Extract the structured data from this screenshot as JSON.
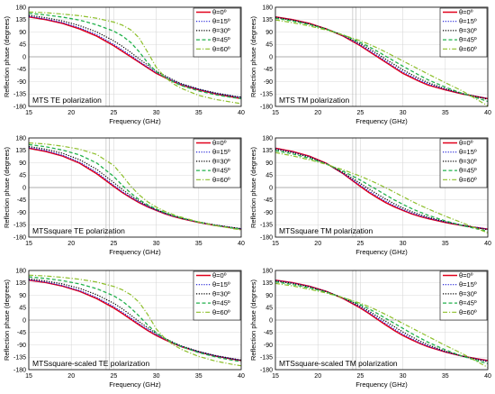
{
  "chart_data": [
    {
      "type": "line",
      "title": "MTS  TE polarization",
      "xlabel": "Frequency (GHz)",
      "ylabel": "Reflection phase (degrees)",
      "xlim": [
        15,
        40
      ],
      "ylim": [
        -180,
        180
      ],
      "xticks": [
        "15",
        "20",
        "25",
        "30",
        "35",
        "40"
      ],
      "yticks": [
        "180",
        "135",
        "90",
        "45",
        "0",
        "-45",
        "-90",
        "-135",
        "-180"
      ],
      "grid": true,
      "legend_position": "top-right",
      "x": [
        15,
        17,
        19,
        21,
        23,
        25,
        26,
        27,
        28,
        29,
        30,
        31,
        32,
        33,
        35,
        37,
        39,
        40
      ],
      "series": [
        {
          "name": "θ=0º",
          "color": "#e0001b",
          "dash": "solid",
          "values": [
            145,
            135,
            121,
            101,
            75,
            40,
            20,
            0,
            -20,
            -40,
            -60,
            -75,
            -90,
            -103,
            -120,
            -135,
            -146,
            -152
          ]
        },
        {
          "name": "θ=15º",
          "color": "#1a1ad6",
          "dash": "dot",
          "values": [
            147,
            137,
            124,
            105,
            80,
            45,
            25,
            5,
            -17,
            -37,
            -57,
            -72,
            -87,
            -100,
            -118,
            -133,
            -143,
            -148
          ]
        },
        {
          "name": "θ=30º",
          "color": "#000000",
          "dash": "dot",
          "values": [
            151,
            142,
            130,
            113,
            90,
            58,
            38,
            16,
            -8,
            -30,
            -52,
            -68,
            -84,
            -98,
            -117,
            -131,
            -142,
            -146
          ]
        },
        {
          "name": "θ=45º",
          "color": "#22b14c",
          "dash": "dash",
          "values": [
            158,
            152,
            144,
            133,
            116,
            93,
            76,
            52,
            18,
            -22,
            -54,
            -74,
            -91,
            -105,
            -124,
            -138,
            -148,
            -152
          ]
        },
        {
          "name": "θ=60º",
          "color": "#8dbf2a",
          "dash": "dashdot",
          "values": [
            163,
            160,
            155,
            149,
            140,
            126,
            115,
            98,
            68,
            16,
            -38,
            -73,
            -98,
            -115,
            -140,
            -155,
            -165,
            -170
          ]
        }
      ]
    },
    {
      "type": "line",
      "title": "MTS  TM polarization",
      "xlabel": "Frequency (GHz)",
      "ylabel": "Reflection phase (degrees)",
      "xlim": [
        15,
        40
      ],
      "ylim": [
        -180,
        180
      ],
      "xticks": [
        "15",
        "20",
        "25",
        "30",
        "35",
        "40"
      ],
      "yticks": [
        "180",
        "135",
        "90",
        "45",
        "0",
        "-45",
        "-90",
        "-135",
        "-180"
      ],
      "grid": true,
      "legend_position": "top-right",
      "x": [
        15,
        17,
        19,
        21,
        23,
        25,
        26,
        27,
        28,
        29,
        30,
        31,
        32,
        33,
        35,
        37,
        39,
        40
      ],
      "series": [
        {
          "name": "θ=0º",
          "color": "#e0001b",
          "dash": "solid",
          "values": [
            145,
            135,
            121,
            101,
            75,
            40,
            20,
            0,
            -20,
            -40,
            -60,
            -75,
            -90,
            -103,
            -120,
            -135,
            -146,
            -152
          ]
        },
        {
          "name": "θ=15º",
          "color": "#1a1ad6",
          "dash": "dot",
          "values": [
            144,
            134,
            120,
            101,
            76,
            43,
            24,
            4,
            -16,
            -36,
            -55,
            -71,
            -86,
            -99,
            -118,
            -134,
            -146,
            -152
          ]
        },
        {
          "name": "θ=30º",
          "color": "#000000",
          "dash": "dot",
          "values": [
            143,
            133,
            119,
            101,
            78,
            47,
            30,
            11,
            -9,
            -28,
            -47,
            -64,
            -80,
            -94,
            -116,
            -133,
            -147,
            -154
          ]
        },
        {
          "name": "θ=45º",
          "color": "#22b14c",
          "dash": "dash",
          "values": [
            140,
            130,
            117,
            100,
            79,
            52,
            37,
            20,
            2,
            -16,
            -34,
            -51,
            -68,
            -84,
            -110,
            -133,
            -152,
            -162
          ]
        },
        {
          "name": "θ=60º",
          "color": "#8dbf2a",
          "dash": "dashdot",
          "values": [
            134,
            124,
            112,
            97,
            79,
            58,
            46,
            32,
            17,
            1,
            -15,
            -31,
            -47,
            -63,
            -94,
            -124,
            -160,
            -178
          ]
        }
      ]
    },
    {
      "type": "line",
      "title": "MTSsquare  TE polarization",
      "xlabel": "Frequency (GHz)",
      "ylabel": "Reflection phase (degrees)",
      "xlim": [
        15,
        40
      ],
      "ylim": [
        -180,
        180
      ],
      "xticks": [
        "15",
        "20",
        "25",
        "30",
        "35",
        "40"
      ],
      "yticks": [
        "180",
        "135",
        "90",
        "45",
        "0",
        "-45",
        "-90",
        "-135",
        "-180"
      ],
      "grid": true,
      "legend_position": "top-right",
      "x": [
        15,
        17,
        19,
        21,
        23,
        25,
        26,
        27,
        28,
        29,
        30,
        31,
        32,
        33,
        35,
        37,
        39,
        40
      ],
      "series": [
        {
          "name": "θ=0º",
          "color": "#e0001b",
          "dash": "solid",
          "values": [
            143,
            131,
            114,
            88,
            50,
            4,
            -18,
            -37,
            -55,
            -70,
            -83,
            -95,
            -105,
            -113,
            -127,
            -138,
            -147,
            -151
          ]
        },
        {
          "name": "θ=15º",
          "color": "#1a1ad6",
          "dash": "dot",
          "values": [
            145,
            134,
            117,
            92,
            55,
            8,
            -15,
            -35,
            -53,
            -69,
            -82,
            -94,
            -104,
            -112,
            -126,
            -137,
            -146,
            -150
          ]
        },
        {
          "name": "θ=30º",
          "color": "#000000",
          "dash": "dot",
          "values": [
            149,
            139,
            124,
            101,
            66,
            18,
            -7,
            -29,
            -49,
            -66,
            -80,
            -92,
            -102,
            -111,
            -125,
            -136,
            -145,
            -149
          ]
        },
        {
          "name": "θ=45º",
          "color": "#22b14c",
          "dash": "dash",
          "values": [
            156,
            148,
            136,
            118,
            89,
            40,
            8,
            -20,
            -44,
            -63,
            -78,
            -91,
            -102,
            -111,
            -126,
            -138,
            -147,
            -151
          ]
        },
        {
          "name": "θ=60º",
          "color": "#8dbf2a",
          "dash": "dashdot",
          "values": [
            162,
            158,
            150,
            139,
            120,
            80,
            44,
            5,
            -27,
            -52,
            -71,
            -86,
            -98,
            -108,
            -125,
            -138,
            -149,
            -154
          ]
        }
      ]
    },
    {
      "type": "line",
      "title": "MTSsquare  TM polarization",
      "xlabel": "Frequency (GHz)",
      "ylabel": "Reflection phase (degrees)",
      "xlim": [
        15,
        40
      ],
      "ylim": [
        -180,
        180
      ],
      "xticks": [
        "15",
        "20",
        "25",
        "30",
        "35",
        "40"
      ],
      "yticks": [
        "180",
        "135",
        "90",
        "45",
        "0",
        "-45",
        "-90",
        "-135",
        "-180"
      ],
      "grid": true,
      "legend_position": "top-right",
      "x": [
        15,
        17,
        19,
        21,
        23,
        25,
        26,
        27,
        28,
        29,
        30,
        31,
        32,
        33,
        35,
        37,
        39,
        40
      ],
      "series": [
        {
          "name": "θ=0º",
          "color": "#e0001b",
          "dash": "solid",
          "values": [
            143,
            131,
            114,
            88,
            50,
            4,
            -18,
            -37,
            -55,
            -70,
            -83,
            -95,
            -105,
            -113,
            -127,
            -138,
            -147,
            -151
          ]
        },
        {
          "name": "θ=15º",
          "color": "#1a1ad6",
          "dash": "dot",
          "values": [
            141,
            129,
            112,
            87,
            51,
            8,
            -13,
            -32,
            -50,
            -66,
            -80,
            -92,
            -102,
            -111,
            -125,
            -137,
            -146,
            -151
          ]
        },
        {
          "name": "θ=30º",
          "color": "#000000",
          "dash": "dot",
          "values": [
            139,
            127,
            110,
            86,
            54,
            15,
            -5,
            -24,
            -42,
            -59,
            -74,
            -87,
            -98,
            -108,
            -124,
            -137,
            -148,
            -153
          ]
        },
        {
          "name": "θ=45º",
          "color": "#22b14c",
          "dash": "dash",
          "values": [
            134,
            122,
            106,
            85,
            59,
            27,
            9,
            -9,
            -27,
            -45,
            -61,
            -76,
            -89,
            -101,
            -121,
            -138,
            -152,
            -159
          ]
        },
        {
          "name": "θ=60º",
          "color": "#8dbf2a",
          "dash": "dashdot",
          "values": [
            127,
            115,
            101,
            84,
            64,
            41,
            28,
            14,
            -1,
            -17,
            -33,
            -49,
            -64,
            -78,
            -104,
            -128,
            -152,
            -165
          ]
        }
      ]
    },
    {
      "type": "line",
      "title": "MTSsquare-scaled  TE polarization",
      "xlabel": "Frequency (GHz)",
      "ylabel": "Reflection phase (degrees)",
      "xlim": [
        15,
        40
      ],
      "ylim": [
        -180,
        180
      ],
      "xticks": [
        "15",
        "20",
        "25",
        "30",
        "35",
        "40"
      ],
      "yticks": [
        "180",
        "135",
        "90",
        "45",
        "0",
        "-45",
        "-90",
        "-135",
        "-180"
      ],
      "grid": true,
      "legend_position": "top-right",
      "x": [
        15,
        17,
        19,
        21,
        23,
        25,
        26,
        27,
        28,
        29,
        30,
        31,
        32,
        33,
        35,
        37,
        39,
        40
      ],
      "series": [
        {
          "name": "θ=0º",
          "color": "#e0001b",
          "dash": "solid",
          "values": [
            145,
            136,
            123,
            104,
            78,
            44,
            24,
            3,
            -18,
            -38,
            -56,
            -71,
            -85,
            -97,
            -116,
            -131,
            -142,
            -147
          ]
        },
        {
          "name": "θ=15º",
          "color": "#1a1ad6",
          "dash": "dot",
          "values": [
            146,
            138,
            125,
            107,
            82,
            49,
            29,
            8,
            -14,
            -34,
            -53,
            -69,
            -83,
            -96,
            -115,
            -130,
            -141,
            -146
          ]
        },
        {
          "name": "θ=30º",
          "color": "#000000",
          "dash": "dot",
          "values": [
            150,
            142,
            131,
            115,
            92,
            61,
            41,
            18,
            -6,
            -28,
            -49,
            -66,
            -81,
            -94,
            -114,
            -129,
            -140,
            -145
          ]
        },
        {
          "name": "θ=45º",
          "color": "#22b14c",
          "dash": "dash",
          "values": [
            157,
            151,
            143,
            131,
            114,
            88,
            69,
            44,
            14,
            -18,
            -46,
            -66,
            -83,
            -97,
            -118,
            -134,
            -146,
            -151
          ]
        },
        {
          "name": "θ=60º",
          "color": "#8dbf2a",
          "dash": "dashdot",
          "values": [
            163,
            160,
            155,
            148,
            138,
            122,
            110,
            92,
            64,
            20,
            -32,
            -66,
            -90,
            -107,
            -132,
            -149,
            -161,
            -166
          ]
        }
      ]
    },
    {
      "type": "line",
      "title": "MTSsquare-scaled  TM polarization",
      "xlabel": "Frequency (GHz)",
      "ylabel": "Reflection phase (degrees)",
      "xlim": [
        15,
        40
      ],
      "ylim": [
        -180,
        180
      ],
      "xticks": [
        "15",
        "20",
        "25",
        "30",
        "35",
        "40"
      ],
      "yticks": [
        "180",
        "135",
        "90",
        "45",
        "0",
        "-45",
        "-90",
        "-135",
        "-180"
      ],
      "grid": true,
      "legend_position": "top-right",
      "x": [
        15,
        17,
        19,
        21,
        23,
        25,
        26,
        27,
        28,
        29,
        30,
        31,
        32,
        33,
        35,
        37,
        39,
        40
      ],
      "series": [
        {
          "name": "θ=0º",
          "color": "#e0001b",
          "dash": "solid",
          "values": [
            145,
            136,
            123,
            104,
            78,
            44,
            24,
            3,
            -18,
            -38,
            -56,
            -71,
            -85,
            -97,
            -116,
            -131,
            -142,
            -147
          ]
        },
        {
          "name": "θ=15º",
          "color": "#1a1ad6",
          "dash": "dot",
          "values": [
            144,
            135,
            122,
            104,
            79,
            47,
            28,
            7,
            -13,
            -33,
            -51,
            -67,
            -82,
            -95,
            -115,
            -131,
            -143,
            -148
          ]
        },
        {
          "name": "θ=30º",
          "color": "#000000",
          "dash": "dot",
          "values": [
            142,
            133,
            120,
            103,
            80,
            51,
            33,
            14,
            -5,
            -24,
            -43,
            -60,
            -76,
            -90,
            -113,
            -131,
            -145,
            -151
          ]
        },
        {
          "name": "θ=45º",
          "color": "#22b14c",
          "dash": "dash",
          "values": [
            139,
            129,
            117,
            101,
            81,
            56,
            41,
            24,
            6,
            -12,
            -30,
            -48,
            -65,
            -81,
            -108,
            -131,
            -150,
            -158
          ]
        },
        {
          "name": "θ=60º",
          "color": "#8dbf2a",
          "dash": "dashdot",
          "values": [
            133,
            124,
            112,
            98,
            81,
            61,
            49,
            35,
            20,
            4,
            -12,
            -28,
            -44,
            -60,
            -92,
            -122,
            -155,
            -172
          ]
        }
      ]
    }
  ]
}
